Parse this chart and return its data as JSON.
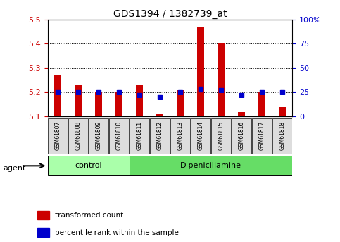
{
  "title": "GDS1394 / 1382739_at",
  "samples": [
    "GSM61807",
    "GSM61808",
    "GSM61809",
    "GSM61810",
    "GSM61811",
    "GSM61812",
    "GSM61813",
    "GSM61814",
    "GSM61815",
    "GSM61816",
    "GSM61817",
    "GSM61818"
  ],
  "red_values": [
    5.27,
    5.23,
    5.2,
    5.2,
    5.23,
    5.11,
    5.21,
    5.47,
    5.4,
    5.12,
    5.2,
    5.14
  ],
  "blue_values": [
    25,
    25,
    25,
    25,
    22,
    20,
    25,
    28,
    27,
    22,
    25,
    25
  ],
  "y_min": 5.1,
  "y_max": 5.5,
  "y_ticks": [
    5.1,
    5.2,
    5.3,
    5.4,
    5.5
  ],
  "y_right_ticks": [
    0,
    25,
    50,
    75,
    100
  ],
  "y_right_labels": [
    "0",
    "25",
    "50",
    "75",
    "100%"
  ],
  "groups": [
    {
      "label": "control",
      "start": 0,
      "end": 4,
      "color": "#aaffaa"
    },
    {
      "label": "D-penicillamine",
      "start": 4,
      "end": 12,
      "color": "#66dd66"
    }
  ],
  "bar_color_red": "#cc0000",
  "bar_color_blue": "#0000cc",
  "agent_label": "agent",
  "legend_items": [
    {
      "color": "#cc0000",
      "label": "transformed count"
    },
    {
      "color": "#0000cc",
      "label": "percentile rank within the sample"
    }
  ],
  "tick_label_bg": "#dddddd",
  "baseline": 5.1
}
